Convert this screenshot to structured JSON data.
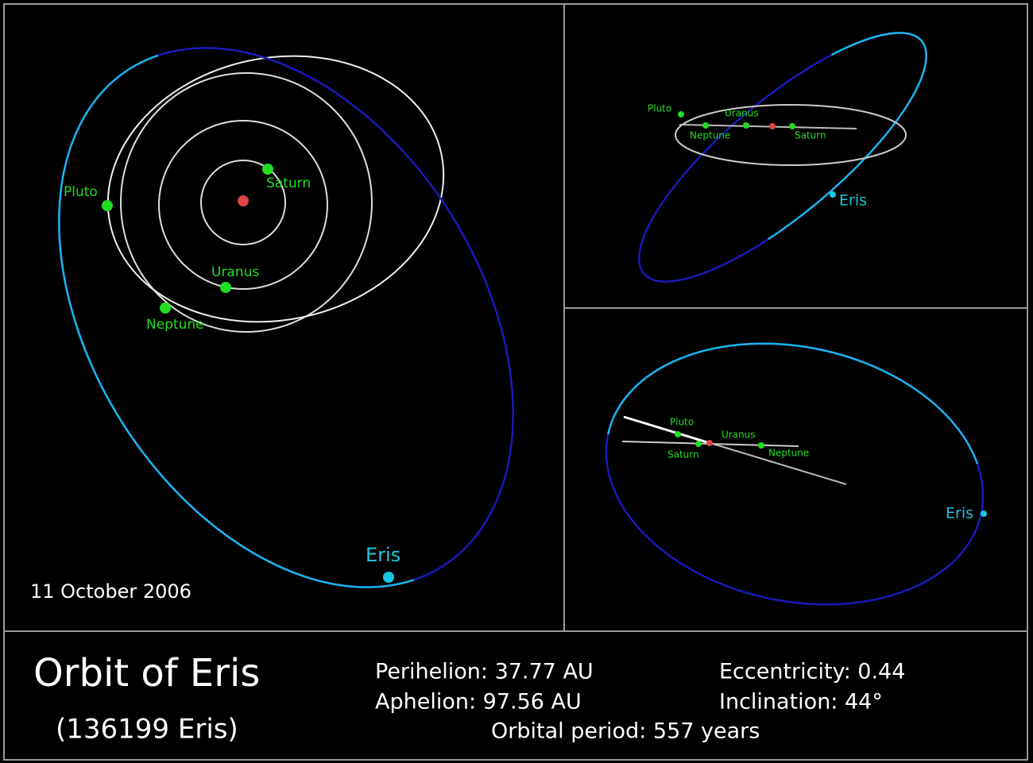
{
  "panels": [
    {
      "labels": [
        "Pluto",
        "Saturn",
        "Uranus",
        "Neptune",
        "Eris"
      ],
      "date": "11 October 2006"
    },
    {
      "labels": [
        "Pluto",
        "Uranus",
        "Neptune",
        "Saturn",
        "Eris"
      ]
    },
    {
      "labels": [
        "Pluto",
        "Uranus",
        "Saturn",
        "Neptune",
        "Eris"
      ]
    }
  ],
  "footer": {
    "title": "Orbit of Eris",
    "subtitle": "(136199 Eris)",
    "stats": [
      "Perihelion: 37.77 AU",
      "Aphelion: 97.56 AU",
      "Eccentricity: 0.44",
      "Inclination: 44°",
      "Orbital period: 557 years"
    ]
  }
}
